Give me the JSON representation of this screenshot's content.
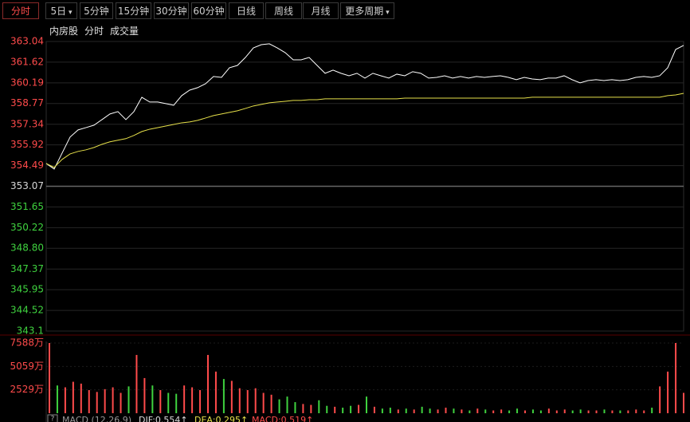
{
  "toolbar": {
    "tabs": [
      "分时",
      "5日",
      "5分钟",
      "15分钟",
      "30分钟",
      "60分钟",
      "日线",
      "周线",
      "月线",
      "更多周期"
    ]
  },
  "header": {
    "symbol": "内房股",
    "period": "分时",
    "indicator": "成交量"
  },
  "macd_bar": {
    "name": "MACD (12,26,9)",
    "dif": "DIF:0.554↑",
    "dea": "DEA:0.295↑",
    "macd": "MACD:0.519↑"
  },
  "chart_data": [
    {
      "type": "line",
      "ylim": [
        343.1,
        363.04
      ],
      "grid": true,
      "up_color": "#ff4b4b",
      "down_color": "#3fd23f",
      "flat_color": "#d8d8d8",
      "yticks": [
        363.04,
        361.62,
        360.19,
        358.77,
        357.34,
        355.92,
        354.49,
        353.07,
        351.65,
        350.22,
        {
          "value": 348.8,
          "label": "348.80"
        },
        347.37,
        345.95,
        344.52,
        343.1
      ],
      "series": [
        {
          "color": "#ffffff",
          "values": [
            354.64,
            354.26,
            355.36,
            356.46,
            356.95,
            357.11,
            357.28,
            357.66,
            358.05,
            358.21,
            357.66,
            358.21,
            359.2,
            358.87,
            358.87,
            358.76,
            358.65,
            359.31,
            359.69,
            359.86,
            360.13,
            360.63,
            360.57,
            361.23,
            361.39,
            361.94,
            362.6,
            362.82,
            362.88,
            362.6,
            362.27,
            361.78,
            361.78,
            361.94,
            361.39,
            360.85,
            361.07,
            360.85,
            360.68,
            360.85,
            360.52,
            360.85,
            360.68,
            360.52,
            360.79,
            360.68,
            360.96,
            360.85,
            360.52,
            360.57,
            360.68,
            360.52,
            360.63,
            360.52,
            360.63,
            360.57,
            360.63,
            360.68,
            360.57,
            360.41,
            360.57,
            360.46,
            360.41,
            360.52,
            360.52,
            360.68,
            360.41,
            360.19,
            360.35,
            360.41,
            360.35,
            360.41,
            360.35,
            360.41,
            360.57,
            360.63,
            360.57,
            360.68,
            361.23,
            362.49,
            362.77
          ]
        },
        {
          "color": "#e6e04a",
          "values": [
            354.64,
            354.37,
            354.92,
            355.3,
            355.47,
            355.58,
            355.74,
            355.96,
            356.13,
            356.24,
            356.35,
            356.57,
            356.84,
            357.0,
            357.11,
            357.22,
            357.33,
            357.44,
            357.5,
            357.61,
            357.77,
            357.94,
            358.05,
            358.16,
            358.27,
            358.43,
            358.6,
            358.71,
            358.82,
            358.87,
            358.92,
            358.98,
            358.98,
            359.03,
            359.03,
            359.09,
            359.09,
            359.09,
            359.09,
            359.09,
            359.09,
            359.09,
            359.09,
            359.09,
            359.09,
            359.14,
            359.14,
            359.14,
            359.14,
            359.14,
            359.14,
            359.14,
            359.14,
            359.14,
            359.14,
            359.14,
            359.14,
            359.14,
            359.14,
            359.14,
            359.14,
            359.2,
            359.2,
            359.2,
            359.2,
            359.2,
            359.2,
            359.2,
            359.2,
            359.2,
            359.2,
            359.2,
            359.2,
            359.2,
            359.2,
            359.2,
            359.2,
            359.2,
            359.31,
            359.36,
            359.47
          ]
        }
      ]
    },
    {
      "type": "bar",
      "ylim": [
        0,
        7588
      ],
      "up_color": "#ff4b4b",
      "down_color": "#3fd23f",
      "yticks": [
        {
          "value": 7588,
          "label": "7588万"
        },
        {
          "value": 5059,
          "label": "5059万"
        },
        {
          "value": 2529,
          "label": "2529万"
        }
      ],
      "values": [
        7588,
        3000,
        2800,
        3400,
        3200,
        2500,
        2300,
        2600,
        2800,
        2200,
        2900,
        6300,
        3800,
        3000,
        2500,
        2200,
        2100,
        3000,
        2800,
        2500,
        6300,
        4500,
        3700,
        3500,
        2700,
        2500,
        2700,
        2200,
        2000,
        1500,
        1800,
        1200,
        1000,
        900,
        1400,
        800,
        700,
        600,
        800,
        900,
        1800,
        700,
        500,
        600,
        400,
        500,
        400,
        700,
        500,
        400,
        600,
        500,
        400,
        300,
        500,
        400,
        300,
        400,
        300,
        500,
        300,
        400,
        300,
        500,
        300,
        400,
        300,
        400,
        300,
        300,
        400,
        300,
        300,
        300,
        400,
        300,
        600,
        2900,
        4500,
        7588,
        2200
      ]
    }
  ]
}
